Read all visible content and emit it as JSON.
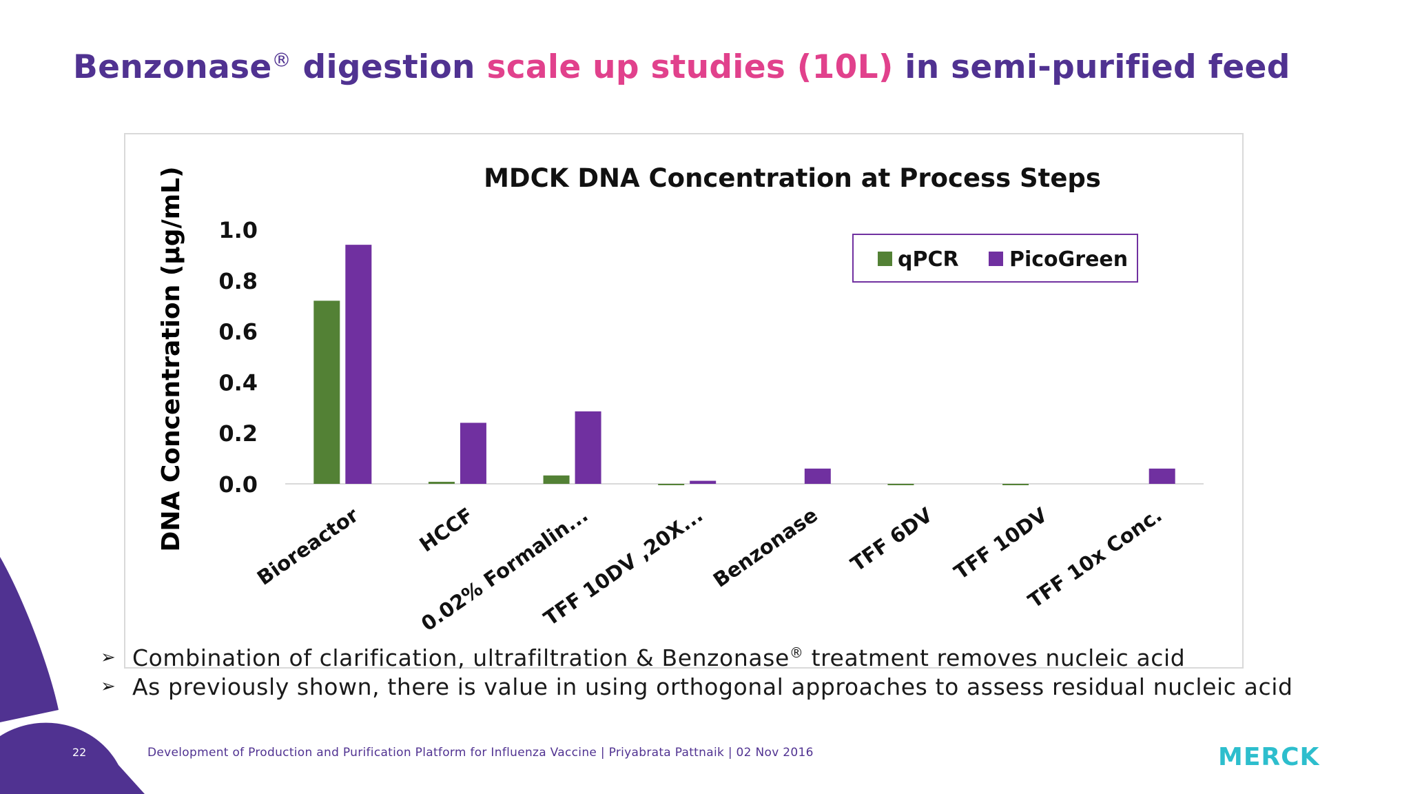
{
  "title": {
    "part1": "Benzonase",
    "reg": "®",
    "part2": " digestion ",
    "highlight": "scale up studies (10L)",
    "part3": " in semi-purified feed"
  },
  "colors": {
    "title_purple": "#503291",
    "title_pink": "#e1418c",
    "qpcr_green": "#538135",
    "picogreen_purple": "#7030a0",
    "decor_purple": "#503291",
    "logo_teal": "#2dbecd"
  },
  "chart_data": {
    "type": "bar",
    "title": "MDCK DNA Concentration at Process Steps",
    "xlabel": "",
    "ylabel": "DNA Concentration (µg/mL)",
    "ylim": [
      0,
      1.0
    ],
    "yticks": [
      0.0,
      0.2,
      0.4,
      0.6,
      0.8,
      1.0
    ],
    "ytick_labels": [
      "0.0",
      "0.2",
      "0.4",
      "0.6",
      "0.8",
      "1.0"
    ],
    "categories": [
      "Bioreactor",
      "HCCF",
      "0.02% Formalin...",
      "TFF 10DV ,20X...",
      "Benzonase",
      "TFF 6DV",
      "TFF 10DV",
      "TFF  10x Conc."
    ],
    "series": [
      {
        "name": "qPCR",
        "color": "#538135",
        "values": [
          0.72,
          0.008,
          0.033,
          -0.005,
          null,
          -0.005,
          -0.005,
          null
        ]
      },
      {
        "name": "PicoGreen",
        "color": "#7030a0",
        "values": [
          0.94,
          0.24,
          0.285,
          0.012,
          0.06,
          null,
          null,
          0.06
        ]
      }
    ],
    "legend_position": "top-right",
    "grid": false
  },
  "bullets": [
    {
      "marker": "➢",
      "before": "Combination of clarification, ultrafiltration & Benzonase",
      "reg": "®",
      "after": " treatment removes nucleic acid"
    },
    {
      "marker": "➢",
      "before": "As previously shown, there is value in using orthogonal approaches to assess residual nucleic acid",
      "reg": "",
      "after": ""
    }
  ],
  "footer": {
    "page_number": "22",
    "text": "Development of Production and Purification Platform for Influenza Vaccine | Priyabrata Pattnaik | 02 Nov 2016",
    "logo": "MERCK"
  }
}
